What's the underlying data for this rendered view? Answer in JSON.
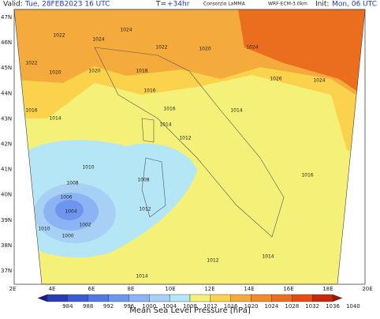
{
  "header": {
    "valid_label": "Valid:",
    "valid_time": "Tue, 28FEB2023  16 UTC",
    "lead_label": "T=",
    "lead_time": "+34hr",
    "source": "Consorzio LaMMA",
    "model": "WRF-ECM-3.0km",
    "init_label": "Init:",
    "init_time": "Mon, 06 UTC"
  },
  "lat_labels": [
    "47N",
    "46N",
    "45N",
    "44N",
    "43N",
    "42N",
    "41N",
    "40N",
    "39N",
    "38N",
    "37N"
  ],
  "lon_labels": [
    "2E",
    "4E",
    "6E",
    "8E",
    "10E",
    "12E",
    "14E",
    "16E",
    "18E",
    "20E"
  ],
  "isobar_labels": [
    "1022",
    "1020",
    "1022",
    "1024",
    "1024",
    "1020",
    "1022",
    "1018",
    "1016",
    "1020",
    "1024",
    "1026",
    "1024",
    "1016",
    "1014",
    "1016",
    "1014",
    "1012",
    "1010",
    "1008",
    "1006",
    "1004",
    "1002",
    "1000",
    "1010",
    "1008",
    "1012",
    "1014",
    "1016",
    "1014",
    "1014",
    "1012"
  ],
  "colorbar": {
    "title": "Mean Sea Level Pressure [hPa]",
    "ticks": [
      984,
      988,
      992,
      996,
      1000,
      1004,
      1008,
      1012,
      1016,
      1020,
      1024,
      1028,
      1032,
      1036,
      1040
    ],
    "colors": [
      "#1a1a8c",
      "#2a3cb4",
      "#3c5ad2",
      "#5078e6",
      "#6e96f0",
      "#8cb4f5",
      "#a8d0f5",
      "#b4e6f5",
      "#f5f078",
      "#fad24b",
      "#f5aa3c",
      "#f08c28",
      "#eb6e1e",
      "#e64b14",
      "#c8280a",
      "#a0140a"
    ]
  }
}
